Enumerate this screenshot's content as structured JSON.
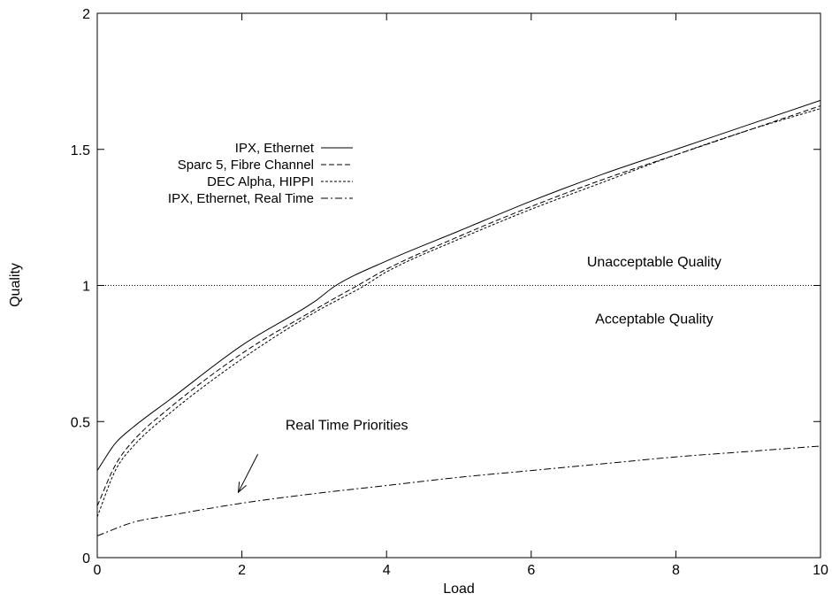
{
  "chart_data": {
    "type": "line",
    "title": "",
    "xlabel": "Load",
    "ylabel": "Quality",
    "xlim": [
      0,
      10
    ],
    "ylim": [
      0,
      2
    ],
    "xticks": [
      0,
      2,
      4,
      6,
      8,
      10
    ],
    "yticks": [
      0,
      0.5,
      1,
      1.5,
      2
    ],
    "xtick_labels": [
      "0",
      "2",
      "4",
      "6",
      "8",
      "10"
    ],
    "ytick_labels": [
      "0",
      "0.5",
      "1",
      "1.5",
      "2"
    ],
    "grid": false,
    "legend_position": "upper-left",
    "series": [
      {
        "name": "IPX, Ethernet",
        "dash": "solid",
        "x": [
          0,
          0.25,
          0.5,
          1,
          2,
          3,
          3.3,
          4,
          5,
          6,
          7,
          8,
          9,
          10
        ],
        "y": [
          0.32,
          0.42,
          0.48,
          0.58,
          0.78,
          0.94,
          1.0,
          1.09,
          1.2,
          1.31,
          1.41,
          1.5,
          1.59,
          1.68
        ]
      },
      {
        "name": "Sparc 5, Fibre Channel",
        "dash": "dashed",
        "x": [
          0,
          0.25,
          0.5,
          1,
          2,
          3,
          3.6,
          4,
          5,
          6,
          7,
          8,
          9,
          10
        ],
        "y": [
          0.19,
          0.34,
          0.43,
          0.55,
          0.75,
          0.91,
          1.0,
          1.06,
          1.18,
          1.29,
          1.39,
          1.48,
          1.57,
          1.66
        ]
      },
      {
        "name": "DEC Alpha, HIPPI",
        "dash": "dotted",
        "x": [
          0,
          0.25,
          0.5,
          1,
          2,
          3,
          3.7,
          4,
          5,
          6,
          7,
          8,
          9,
          10
        ],
        "y": [
          0.15,
          0.32,
          0.41,
          0.53,
          0.73,
          0.9,
          1.0,
          1.05,
          1.17,
          1.28,
          1.38,
          1.48,
          1.57,
          1.65
        ]
      },
      {
        "name": "IPX, Ethernet, Real Time",
        "dash": "dashdot",
        "x": [
          0,
          0.5,
          1,
          2,
          3,
          4,
          5,
          6,
          7,
          8,
          9,
          10
        ],
        "y": [
          0.08,
          0.13,
          0.155,
          0.2,
          0.235,
          0.265,
          0.295,
          0.32,
          0.345,
          0.37,
          0.39,
          0.41
        ]
      }
    ],
    "reference_line": {
      "y": 1,
      "style": "dotted"
    },
    "annotations": [
      {
        "text": "Unacceptable Quality",
        "x": 7.7,
        "y": 1.09
      },
      {
        "text": "Acceptable Quality",
        "x": 7.7,
        "y": 0.88
      },
      {
        "text": "Real Time Priorities",
        "x": 3.45,
        "y": 0.49,
        "arrow_to": [
          1.95,
          0.24
        ],
        "arrow_from": [
          2.22,
          0.38
        ]
      }
    ]
  }
}
